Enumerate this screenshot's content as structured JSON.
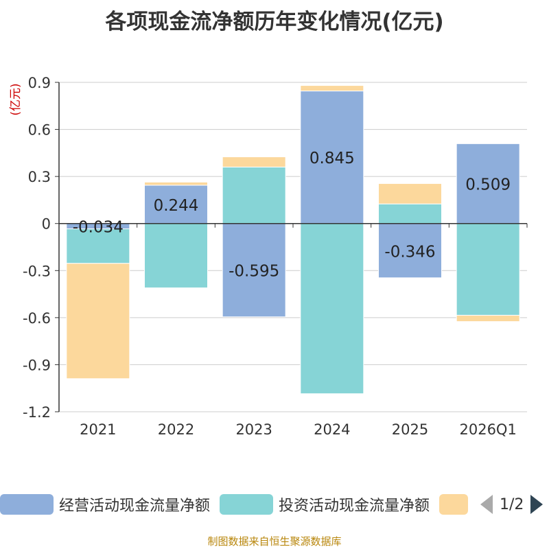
{
  "title": "各项现金流净额历年变化情况(亿元)",
  "source": "制图数据来自恒生聚源数据库",
  "pager": {
    "text": "1/2"
  },
  "colors": {
    "operating": "#8eaedb",
    "investing": "#86d4d6",
    "financing": "#fcd89c",
    "axis": "#333333",
    "grid": "#cccccc",
    "unit": "#cc0000"
  },
  "chart_data": {
    "type": "bar",
    "stacked": true,
    "title": "各项现金流净额历年变化情况(亿元)",
    "ylabel": "(亿元)",
    "ylim": [
      -1.2,
      0.9
    ],
    "yticks": [
      "0.9",
      "0.6",
      "0.3",
      "0",
      "-0.3",
      "-0.6",
      "-0.9",
      "-1.2"
    ],
    "ytick_values": [
      0.9,
      0.6,
      0.3,
      0,
      -0.3,
      -0.6,
      -0.9,
      -1.2
    ],
    "categories": [
      "2021",
      "2022",
      "2023",
      "2024",
      "2025",
      "2026Q1"
    ],
    "series": [
      {
        "name": "经营活动现金流量净额",
        "color": "#8eaedb",
        "values": [
          -0.034,
          0.244,
          -0.595,
          0.845,
          -0.346,
          0.509
        ],
        "labels": [
          "-0.034",
          "0.244",
          "-0.595",
          "0.845",
          "-0.346",
          "0.509"
        ]
      },
      {
        "name": "投资活动现金流量净额",
        "color": "#86d4d6",
        "values": [
          -0.22,
          -0.41,
          0.36,
          -1.085,
          0.125,
          -0.585
        ]
      },
      {
        "name": "",
        "color": "#fcd89c",
        "values": [
          -0.735,
          0.02,
          0.065,
          0.035,
          0.13,
          -0.04
        ]
      }
    ]
  },
  "legend": [
    {
      "label": "经营活动现金流量净额"
    },
    {
      "label": "投资活动现金流量净额"
    },
    {
      "label": ""
    }
  ]
}
